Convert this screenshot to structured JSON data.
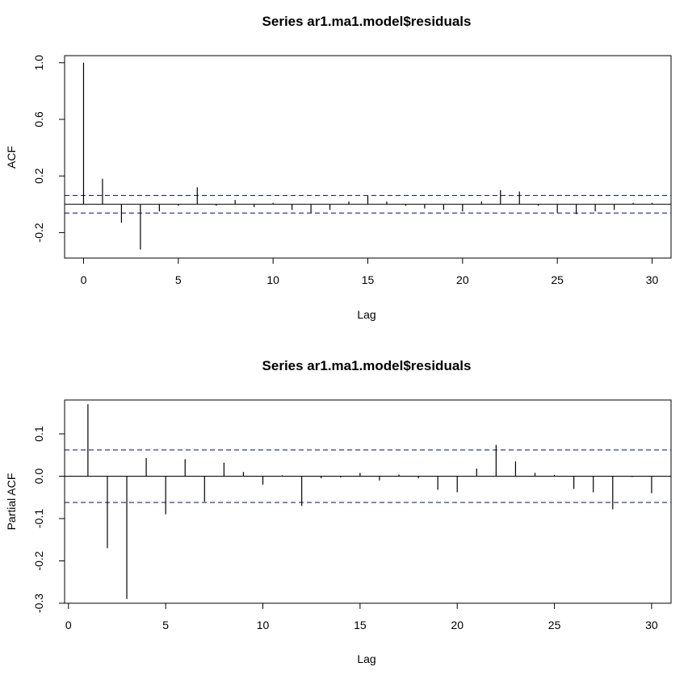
{
  "chart_data": [
    {
      "type": "bar",
      "title": "Series  ar1.ma1.model$residuals",
      "xlabel": "Lag",
      "ylabel": "ACF",
      "xlim": [
        -1,
        31
      ],
      "ylim": [
        -0.38,
        1.05
      ],
      "x_ticks": [
        0,
        5,
        10,
        15,
        20,
        25,
        30
      ],
      "y_ticks": [
        -0.2,
        0.2,
        0.6,
        1.0
      ],
      "y_tick_labels": [
        "-0.2",
        "0.2",
        "0.6",
        "1.0"
      ],
      "confidence_band": 0.062,
      "zero_line": true,
      "colors": {
        "bars": "#000000",
        "band": "#1f2a7a"
      },
      "x": [
        0,
        1,
        2,
        3,
        4,
        5,
        6,
        7,
        8,
        9,
        10,
        11,
        12,
        13,
        14,
        15,
        16,
        17,
        18,
        19,
        20,
        21,
        22,
        23,
        24,
        25,
        26,
        27,
        28,
        29,
        30
      ],
      "values": [
        1.0,
        0.18,
        -0.13,
        -0.32,
        -0.05,
        -0.01,
        0.12,
        -0.01,
        0.03,
        -0.02,
        0.01,
        -0.04,
        -0.06,
        -0.04,
        0.02,
        0.06,
        0.02,
        -0.01,
        -0.03,
        -0.04,
        -0.05,
        0.02,
        0.1,
        0.09,
        -0.01,
        -0.06,
        -0.07,
        -0.05,
        -0.04,
        0.01,
        0.01
      ]
    },
    {
      "type": "bar",
      "title": "Series  ar1.ma1.model$residuals",
      "xlabel": "Lag",
      "ylabel": "Partial ACF",
      "xlim": [
        -0.2,
        31
      ],
      "ylim": [
        -0.3,
        0.18
      ],
      "x_ticks": [
        0,
        5,
        10,
        15,
        20,
        25,
        30
      ],
      "y_ticks": [
        -0.3,
        -0.2,
        -0.1,
        0.0,
        0.1
      ],
      "y_tick_labels": [
        "-0.3",
        "-0.2",
        "-0.1",
        "0.0",
        "0.1"
      ],
      "confidence_band": 0.062,
      "zero_line": true,
      "colors": {
        "bars": "#000000",
        "band": "#1f2a7a"
      },
      "x": [
        1,
        2,
        3,
        4,
        5,
        6,
        7,
        8,
        9,
        10,
        11,
        12,
        13,
        14,
        15,
        16,
        17,
        18,
        19,
        20,
        21,
        22,
        23,
        24,
        25,
        26,
        27,
        28,
        29,
        30
      ],
      "values": [
        0.17,
        -0.17,
        -0.29,
        0.043,
        -0.09,
        0.04,
        -0.06,
        0.032,
        0.01,
        -0.02,
        0.002,
        -0.07,
        -0.005,
        -0.003,
        0.008,
        -0.01,
        0.004,
        -0.005,
        -0.032,
        -0.038,
        0.018,
        0.074,
        0.035,
        0.008,
        0.003,
        -0.03,
        -0.038,
        -0.078,
        -0.002,
        -0.04
      ]
    }
  ]
}
